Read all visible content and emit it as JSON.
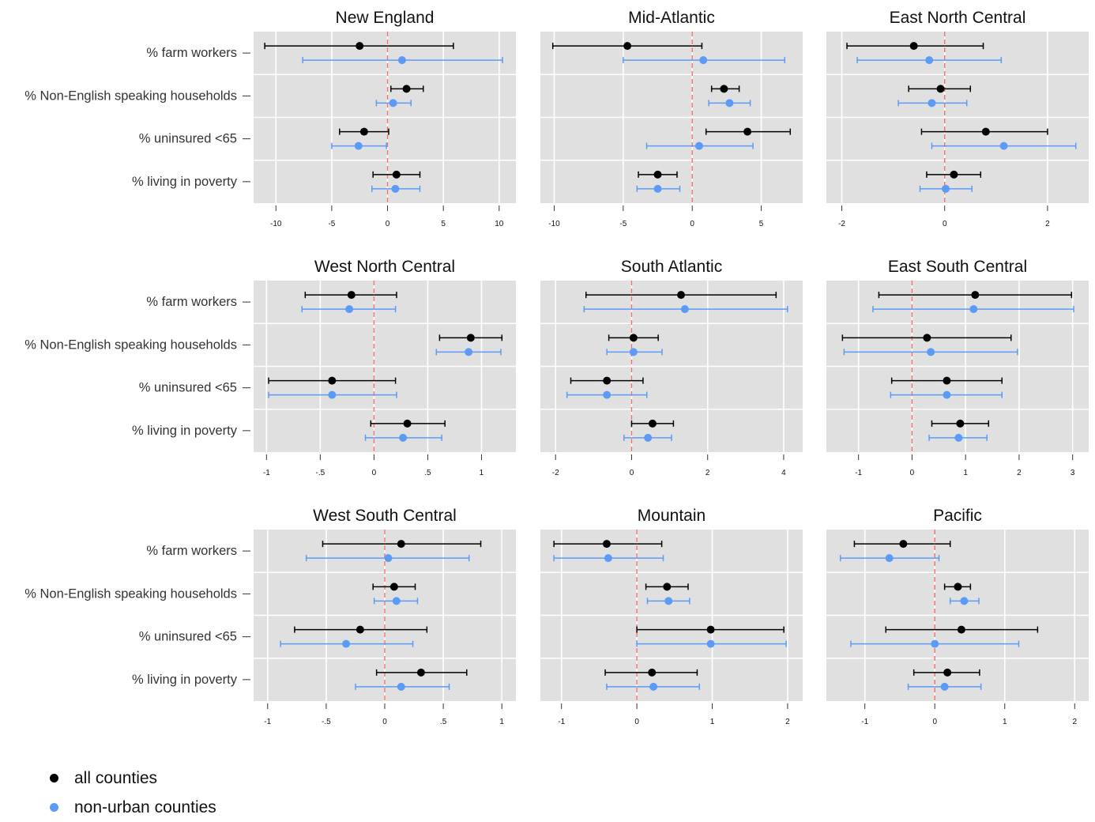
{
  "chart_data": {
    "type": "forest_plot_small_multiples",
    "row_labels": [
      "% farm workers",
      "% Non-English speaking households",
      "% uninsured <65",
      "% living in poverty"
    ],
    "legend": [
      {
        "label": "all counties",
        "color": "#000000"
      },
      {
        "label": "non-urban counties",
        "color": "#5b9bf5"
      }
    ],
    "panels": [
      {
        "title": "New England",
        "xlim": [
          -12,
          11.5
        ],
        "ticks": [
          {
            "v": -10,
            "label": "-10"
          },
          {
            "v": -5,
            "label": "-5"
          },
          {
            "v": 0,
            "label": "0"
          },
          {
            "v": 5,
            "label": "5"
          },
          {
            "v": 10,
            "label": "10"
          }
        ],
        "series": [
          {
            "name": "all counties",
            "estimates": [
              [
                -2.5,
                -11.0,
                5.9
              ],
              [
                1.7,
                0.3,
                3.2
              ],
              [
                -2.1,
                -4.3,
                0.1
              ],
              [
                0.8,
                -1.3,
                2.9
              ]
            ]
          },
          {
            "name": "non-urban counties",
            "estimates": [
              [
                1.3,
                -7.6,
                10.3
              ],
              [
                0.5,
                -1.0,
                2.1
              ],
              [
                -2.6,
                -5.0,
                -0.1
              ],
              [
                0.7,
                -1.4,
                2.9
              ]
            ]
          }
        ]
      },
      {
        "title": "Mid-Atlantic",
        "xlim": [
          -11,
          8
        ],
        "ticks": [
          {
            "v": -10,
            "label": "-10"
          },
          {
            "v": -5,
            "label": "-5"
          },
          {
            "v": 0,
            "label": "0"
          },
          {
            "v": 5,
            "label": "5"
          }
        ],
        "series": [
          {
            "name": "all counties",
            "estimates": [
              [
                -4.7,
                -10.1,
                0.7
              ],
              [
                2.3,
                1.4,
                3.4
              ],
              [
                4.0,
                1.0,
                7.1
              ],
              [
                -2.5,
                -3.9,
                -1.1
              ]
            ]
          },
          {
            "name": "non-urban counties",
            "estimates": [
              [
                0.8,
                -5.0,
                6.7
              ],
              [
                2.7,
                1.2,
                4.2
              ],
              [
                0.5,
                -3.3,
                4.4
              ],
              [
                -2.5,
                -4.0,
                -0.9
              ]
            ]
          }
        ]
      },
      {
        "title": "East North Central",
        "xlim": [
          -2.3,
          2.8
        ],
        "ticks": [
          {
            "v": -2,
            "label": "-2"
          },
          {
            "v": 0,
            "label": "0"
          },
          {
            "v": 2,
            "label": "2"
          }
        ],
        "series": [
          {
            "name": "all counties",
            "estimates": [
              [
                -0.6,
                -1.9,
                0.75
              ],
              [
                -0.08,
                -0.7,
                0.5
              ],
              [
                0.8,
                -0.45,
                2.0
              ],
              [
                0.18,
                -0.35,
                0.7
              ]
            ]
          },
          {
            "name": "non-urban counties",
            "estimates": [
              [
                -0.3,
                -1.7,
                1.1
              ],
              [
                -0.25,
                -0.9,
                0.43
              ],
              [
                1.15,
                -0.25,
                2.55
              ],
              [
                0.02,
                -0.48,
                0.53
              ]
            ]
          }
        ]
      },
      {
        "title": "West North Central",
        "xlim": [
          -1.12,
          1.32
        ],
        "ticks": [
          {
            "v": -1,
            "label": "-1"
          },
          {
            "v": -0.5,
            "label": "-.5"
          },
          {
            "v": 0,
            "label": "0"
          },
          {
            "v": 0.5,
            "label": ".5"
          },
          {
            "v": 1,
            "label": "1"
          }
        ],
        "series": [
          {
            "name": "all counties",
            "estimates": [
              [
                -0.21,
                -0.64,
                0.21
              ],
              [
                0.9,
                0.61,
                1.19
              ],
              [
                -0.39,
                -0.98,
                0.2
              ],
              [
                0.31,
                -0.03,
                0.66
              ]
            ]
          },
          {
            "name": "non-urban counties",
            "estimates": [
              [
                -0.23,
                -0.67,
                0.2
              ],
              [
                0.88,
                0.58,
                1.18
              ],
              [
                -0.39,
                -0.98,
                0.21
              ],
              [
                0.27,
                -0.08,
                0.63
              ]
            ]
          }
        ]
      },
      {
        "title": "South Atlantic",
        "xlim": [
          -2.4,
          4.5
        ],
        "ticks": [
          {
            "v": -2,
            "label": "-2"
          },
          {
            "v": 0,
            "label": "0"
          },
          {
            "v": 2,
            "label": "2"
          },
          {
            "v": 4,
            "label": "4"
          }
        ],
        "series": [
          {
            "name": "all counties",
            "estimates": [
              [
                1.3,
                -1.2,
                3.8
              ],
              [
                0.05,
                -0.6,
                0.7
              ],
              [
                -0.65,
                -1.6,
                0.3
              ],
              [
                0.55,
                0.0,
                1.1
              ]
            ]
          },
          {
            "name": "non-urban counties",
            "estimates": [
              [
                1.4,
                -1.25,
                4.1
              ],
              [
                0.05,
                -0.65,
                0.8
              ],
              [
                -0.65,
                -1.7,
                0.4
              ],
              [
                0.43,
                -0.2,
                1.05
              ]
            ]
          }
        ]
      },
      {
        "title": "East South Central",
        "xlim": [
          -1.6,
          3.3
        ],
        "ticks": [
          {
            "v": -1,
            "label": "-1"
          },
          {
            "v": 0,
            "label": "0"
          },
          {
            "v": 1,
            "label": "1"
          },
          {
            "v": 2,
            "label": "2"
          },
          {
            "v": 3,
            "label": "3"
          }
        ],
        "series": [
          {
            "name": "all counties",
            "estimates": [
              [
                1.18,
                -0.62,
                2.98
              ],
              [
                0.28,
                -1.3,
                1.85
              ],
              [
                0.65,
                -0.38,
                1.68
              ],
              [
                0.9,
                0.37,
                1.43
              ]
            ]
          },
          {
            "name": "non-urban counties",
            "estimates": [
              [
                1.15,
                -0.73,
                3.02
              ],
              [
                0.35,
                -1.27,
                1.97
              ],
              [
                0.65,
                -0.4,
                1.68
              ],
              [
                0.87,
                0.32,
                1.4
              ]
            ]
          }
        ]
      },
      {
        "title": "West South Central",
        "xlim": [
          -1.12,
          1.12
        ],
        "ticks": [
          {
            "v": -1,
            "label": "-1"
          },
          {
            "v": -0.5,
            "label": "-.5"
          },
          {
            "v": 0,
            "label": "0"
          },
          {
            "v": 0.5,
            "label": ".5"
          },
          {
            "v": 1,
            "label": "1"
          }
        ],
        "series": [
          {
            "name": "all counties",
            "estimates": [
              [
                0.14,
                -0.53,
                0.82
              ],
              [
                0.08,
                -0.1,
                0.26
              ],
              [
                -0.21,
                -0.77,
                0.36
              ],
              [
                0.31,
                -0.07,
                0.7
              ]
            ]
          },
          {
            "name": "non-urban counties",
            "estimates": [
              [
                0.03,
                -0.67,
                0.72
              ],
              [
                0.1,
                -0.09,
                0.28
              ],
              [
                -0.33,
                -0.89,
                0.24
              ],
              [
                0.14,
                -0.25,
                0.55
              ]
            ]
          }
        ]
      },
      {
        "title": "Mountain",
        "xlim": [
          -1.28,
          2.2
        ],
        "ticks": [
          {
            "v": -1,
            "label": "-1"
          },
          {
            "v": 0,
            "label": "0"
          },
          {
            "v": 1,
            "label": "1"
          },
          {
            "v": 2,
            "label": "2"
          }
        ],
        "series": [
          {
            "name": "all counties",
            "estimates": [
              [
                -0.4,
                -1.1,
                0.33
              ],
              [
                0.4,
                0.12,
                0.68
              ],
              [
                0.98,
                0.0,
                1.95
              ],
              [
                0.2,
                -0.42,
                0.8
              ]
            ]
          },
          {
            "name": "non-urban counties",
            "estimates": [
              [
                -0.38,
                -1.1,
                0.35
              ],
              [
                0.42,
                0.14,
                0.7
              ],
              [
                0.98,
                0.0,
                1.98
              ],
              [
                0.22,
                -0.4,
                0.83
              ]
            ]
          }
        ]
      },
      {
        "title": "Pacific",
        "xlim": [
          -1.55,
          2.2
        ],
        "ticks": [
          {
            "v": -1,
            "label": "-1"
          },
          {
            "v": 0,
            "label": "0"
          },
          {
            "v": 1,
            "label": "1"
          },
          {
            "v": 2,
            "label": "2"
          }
        ],
        "series": [
          {
            "name": "all counties",
            "estimates": [
              [
                -0.45,
                -1.15,
                0.22
              ],
              [
                0.33,
                0.14,
                0.51
              ],
              [
                0.38,
                -0.7,
                1.47
              ],
              [
                0.18,
                -0.3,
                0.64
              ]
            ]
          },
          {
            "name": "non-urban counties",
            "estimates": [
              [
                -0.65,
                -1.35,
                0.06
              ],
              [
                0.42,
                0.22,
                0.63
              ],
              [
                0.0,
                -1.2,
                1.2
              ],
              [
                0.14,
                -0.38,
                0.66
              ]
            ]
          }
        ]
      }
    ]
  }
}
